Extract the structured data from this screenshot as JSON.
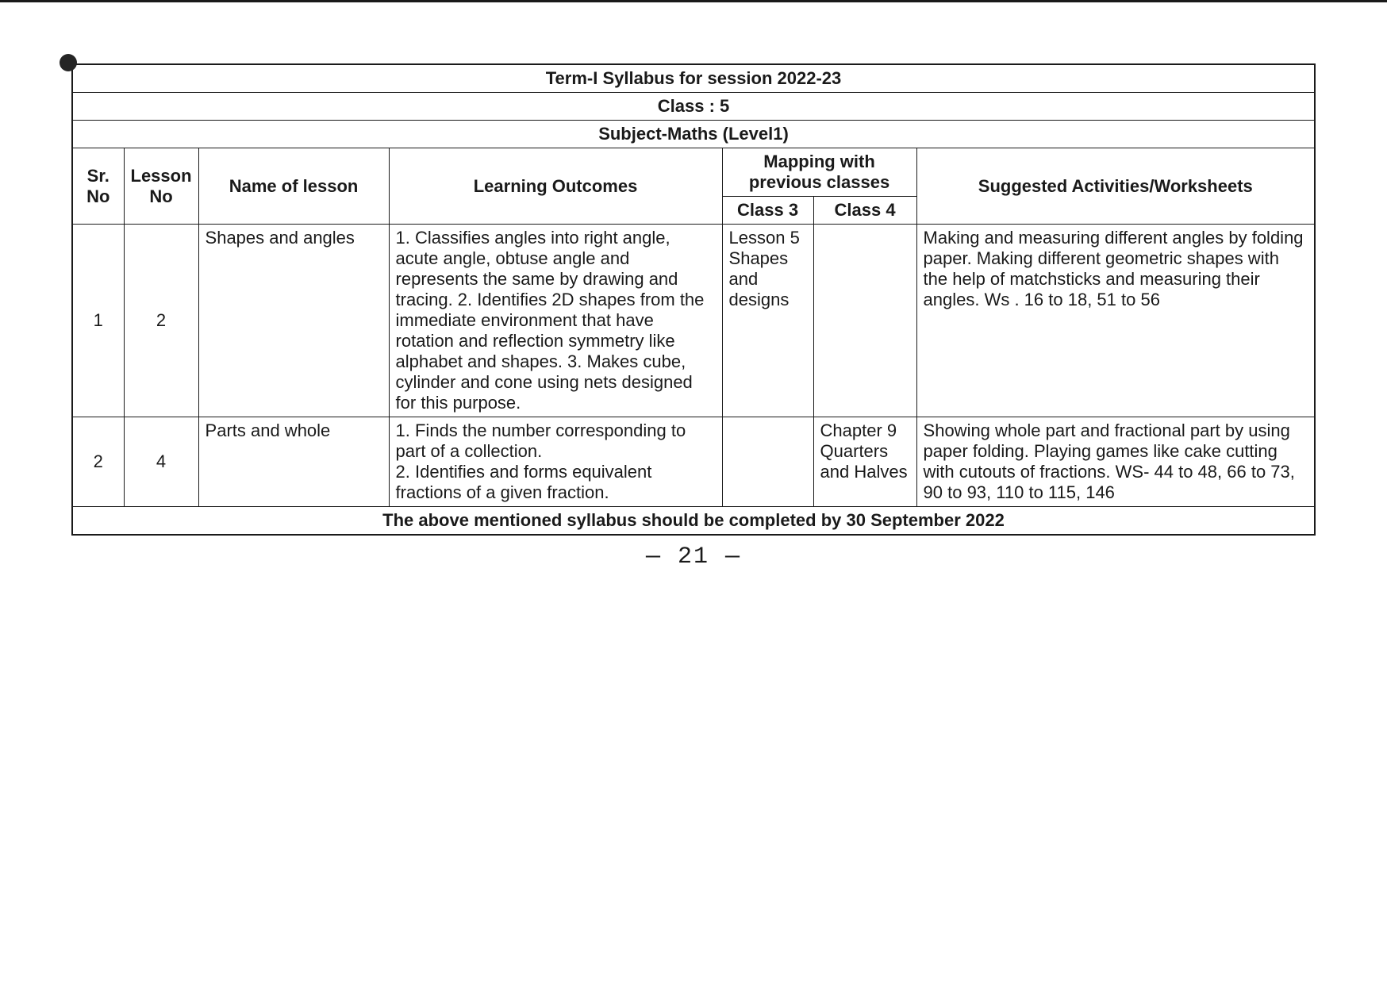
{
  "title1": "Term-I Syllabus for session 2022-23",
  "title2": "Class : 5",
  "title3": "Subject-Maths (Level1)",
  "columns": {
    "srno": "Sr. No",
    "lessonno": "Lesson No",
    "lessonname": "Name of lesson",
    "outcomes": "Learning Outcomes",
    "mapping": "Mapping with previous classes",
    "class3": "Class 3",
    "class4": "Class 4",
    "activities": "Suggested Activities/Worksheets"
  },
  "rows": [
    {
      "sr": "1",
      "lesson": "2",
      "name": "Shapes and angles",
      "outcomes": "1. Classifies angles into right angle, acute angle, obtuse angle and represents the same by drawing and tracing. 2. Identifies 2D shapes from the immediate environment that have rotation and reflection symmetry like alphabet and shapes.  3. Makes cube, cylinder and cone using nets designed for this purpose.",
      "class3": "Lesson 5 Shapes and designs",
      "class4": "",
      "activities": "Making and measuring different angles by folding paper. Making different geometric shapes with the help of matchsticks and measuring their angles.  Ws . 16 to  18, 51 to 56"
    },
    {
      "sr": "2",
      "lesson": "4",
      "name": "Parts and whole",
      "outcomes": "1. Finds the number corresponding to part of a collection.\n2.  Identifies and forms equivalent fractions of a given fraction.",
      "class3": "",
      "class4": "Chapter 9 Quarters and Halves",
      "activities": "Showing whole part and fractional part by using paper folding.  Playing games like cake cutting with cutouts of fractions.  WS- 44 to  48, 66 to  73, 90 to  93, 110 to  115, 146"
    }
  ],
  "footer": "The above mentioned syllabus should be completed by 30 September 2022",
  "pagenum": "— 21 —"
}
